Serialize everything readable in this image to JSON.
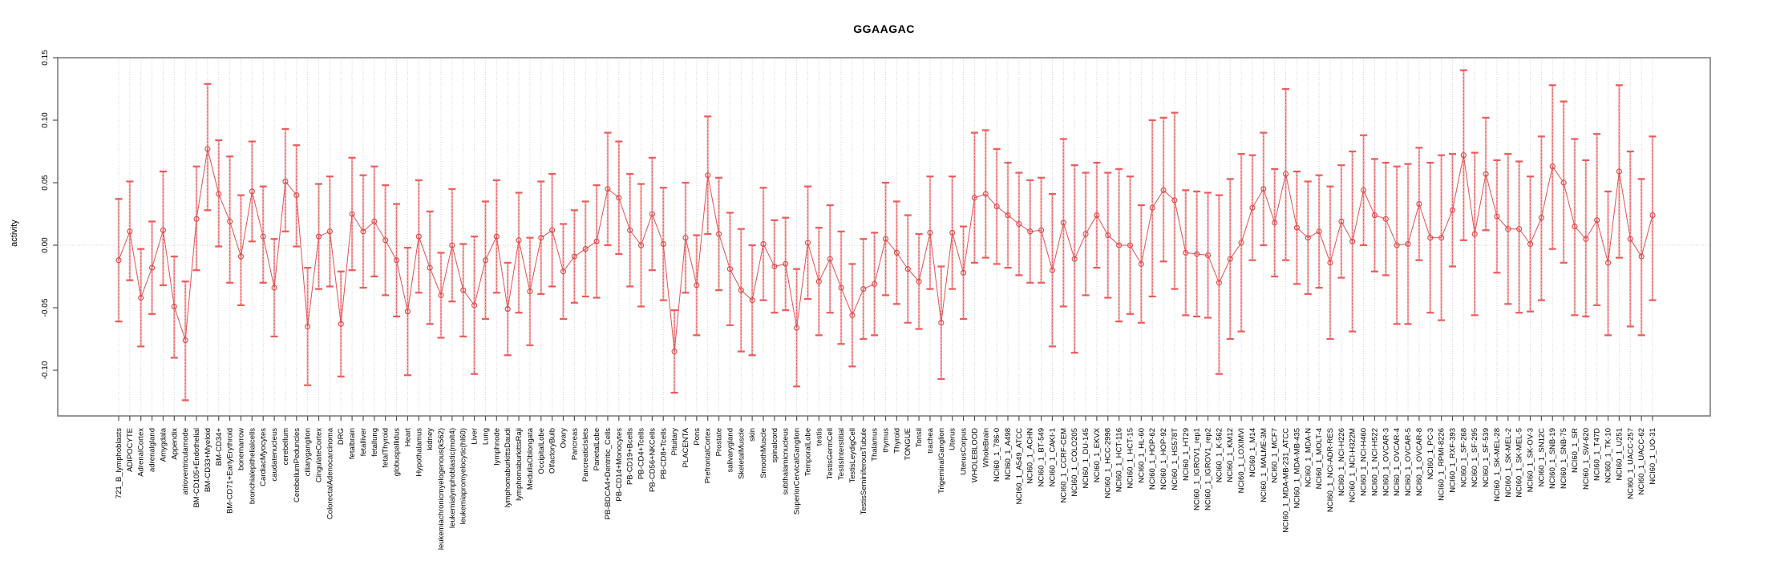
{
  "page": {
    "background": "#ffffff"
  },
  "chart_data": {
    "type": "line",
    "subtype": "means-with-error-bars",
    "title": "GGAAGAC",
    "ylabel": "activity",
    "xlabel": "",
    "legend": "none",
    "grid": "dotted vertical line per category, dotted horizontal line at 0",
    "ylim": [
      -0.137,
      0.15
    ],
    "yticks": [
      -0.1,
      -0.05,
      0.0,
      0.05,
      0.1,
      0.15
    ],
    "ytick_labels": [
      "-0.10",
      "-0.05",
      "0.00",
      "0.05",
      "0.10",
      "0.15"
    ],
    "marker": "open-circle",
    "error_bars": true,
    "colors": {
      "series": "#e25151",
      "marker": "#dd4444",
      "error_line": "#ef7070",
      "error_cap": "#ee5a5a",
      "grid": "#cfcfcf",
      "box": "#7f7f7f",
      "tick": "#555555",
      "text": "#000000"
    },
    "categories": [
      "721_B_lymphoblasts",
      "ADIPOCYTE",
      "AdrenalCortex",
      "adrenalgland",
      "Amygdala",
      "Appendix",
      "atrioventricularnode",
      "BM-CD105+Endothelial",
      "BM-CD33+Myeloid",
      "BM-CD34+",
      "BM-CD71+EarlyErythroid",
      "bonemarrow",
      "bronchialepithelialcells",
      "CardiacMyocytes",
      "caudatenucleus",
      "cerebellum",
      "CerebellumPeduncles",
      "ciliaryganglion",
      "CingulateCortex",
      "ColorectalAdenocarcinoma",
      "DRG",
      "fetalbrain",
      "fetalliver",
      "fetallung",
      "fetalThyroid",
      "globuspallidus",
      "Heart",
      "Hypothalamus",
      "kidney",
      "leukemiachronicmyelogenous(k562)",
      "leukemialymphoblastic(molt4)",
      "leukemiapromyelocytic(hl60)",
      "Liver",
      "Lung",
      "lymphnode",
      "lymphomaburkittsDaudi",
      "lymphomaburkittsRaji",
      "MedullaOblongata",
      "OccipitalLobe",
      "OlfactoryBulb",
      "Ovary",
      "Pancreas",
      "PancreaticIslets",
      "ParietalLobe",
      "PB-BDCA4+Dentritic_Cells",
      "PB-CD14+Monocytes",
      "PB-CD19+Bcells",
      "PB-CD4+Tcells",
      "PB-CD56+NKCells",
      "PB-CD8+Tcells",
      "Pituitary",
      "PLACENTA",
      "Pons",
      "PrefrontalCortex",
      "Prostate",
      "salivarygland",
      "SkeletalMuscle",
      "skin",
      "SmoothMuscle",
      "spinalcord",
      "subthalamicnucleus",
      "SuperiorCervicalGanglion",
      "TemporalLobe",
      "testis",
      "TestisGermCell",
      "TestisInterstitial",
      "TestisLeydigCell",
      "TestisSeminiferousTubule",
      "Thalamus",
      "thymus",
      "Thyroid",
      "TONGUE",
      "Tonsil",
      "trachea",
      "TrigeminalGanglion",
      "Uterus",
      "UterusCorpus",
      "WHOLEBLOOD",
      "WholeBrain",
      "NCI60_1_786-0",
      "NCI60_1_A498",
      "NCI60_1_A549_ATCC",
      "NCI60_1_ACHN",
      "NCI60_1_BT-549",
      "NCI60_1_CAKI-1",
      "NCI60_1_CCRF-CEM",
      "NCI60_1_COLO205",
      "NCI60_1_DU-145",
      "NCI60_1_EKVX",
      "NCI60_1_HCC-2998",
      "NCI60_1_HCT-116",
      "NCI60_1_HCT-15",
      "NCI60_1_HL-60",
      "NCI60_1_HOP-62",
      "NCI60_1_HOP-92",
      "NCI60_1_HS578T",
      "NCI60_1_HT29",
      "NCI60_1_IGROV1_rep1",
      "NCI60_1_IGROV1_rep2",
      "NCI60_1_K-562",
      "NCI60_1_KM12",
      "NCI60_1_LOXIMVI",
      "NCI60_1_M14",
      "NCI60_1_MALME-3M",
      "NCI60_1_MCF7",
      "NCI60_1_MDA-MB-231_ATCC",
      "NCI60_1_MDA-MB-435",
      "NCI60_1_MDA-N",
      "NCI60_1_MOLT-4",
      "NCI60_1_NCI-ADR-RES",
      "NCI60_1_NCI-H226",
      "NCI60_1_NCI-H322M",
      "NCI60_1_NCI-H460",
      "NCI60_1_NCI-H522",
      "NCI60_1_OVCAR-3",
      "NCI60_1_OVCAR-4",
      "NCI60_1_OVCAR-5",
      "NCI60_1_OVCAR-8",
      "NCI60_1_PC-3",
      "NCI60_1_RPMI-8226",
      "NCI60_1_RXF-393",
      "NCI60_1_SF-268",
      "NCI60_1_SF-295",
      "NCI60_1_SF-539",
      "NCI60_1_SK-MEL-28",
      "NCI60_1_SK-MEL-2",
      "NCI60_1_SK-MEL-5",
      "NCI60_1_SK-OV-3",
      "NCI60_1_SN12C",
      "NCI60_1_SNB-19",
      "NCI60_1_SNB-75",
      "NCI60_1_SR",
      "NCI60_1_SW-620",
      "NCI60_1_T47D",
      "NCI60_1_TK-10",
      "NCI60_1_U251",
      "NCI60_1_UACC-257",
      "NCI60_1_UACC-62",
      "NCI60_1_UO-31"
    ],
    "values": [
      -0.012,
      0.011,
      -0.042,
      -0.018,
      0.012,
      -0.049,
      -0.076,
      0.021,
      0.077,
      0.041,
      0.019,
      -0.009,
      0.043,
      0.007,
      -0.034,
      0.051,
      0.04,
      -0.065,
      0.007,
      0.011,
      -0.063,
      0.025,
      0.011,
      0.019,
      0.004,
      -0.012,
      -0.053,
      0.007,
      -0.018,
      -0.04,
      0.0,
      -0.036,
      -0.048,
      -0.012,
      0.007,
      -0.051,
      0.004,
      -0.037,
      0.006,
      0.012,
      -0.021,
      -0.009,
      -0.003,
      0.003,
      0.045,
      0.038,
      0.012,
      0.0,
      0.025,
      0.001,
      -0.085,
      0.006,
      -0.032,
      0.056,
      0.009,
      -0.019,
      -0.036,
      -0.044,
      0.001,
      -0.017,
      -0.015,
      -0.066,
      0.002,
      -0.029,
      -0.011,
      -0.034,
      -0.056,
      -0.035,
      -0.031,
      0.005,
      -0.006,
      -0.019,
      -0.029,
      0.01,
      -0.062,
      0.01,
      -0.022,
      0.038,
      0.041,
      0.031,
      0.024,
      0.017,
      0.011,
      0.012,
      -0.02,
      0.018,
      -0.011,
      0.009,
      0.024,
      0.008,
      0.0,
      0.0,
      -0.015,
      0.03,
      0.044,
      0.036,
      -0.006,
      -0.007,
      -0.008,
      -0.03,
      -0.011,
      0.002,
      0.03,
      0.045,
      0.018,
      0.057,
      0.014,
      0.006,
      0.011,
      -0.014,
      0.019,
      0.003,
      0.044,
      0.024,
      0.021,
      0.0,
      0.001,
      0.033,
      0.006,
      0.006,
      0.028,
      0.072,
      0.009,
      0.057,
      0.023,
      0.013,
      0.013,
      0.001,
      0.022,
      0.063,
      0.05,
      0.015,
      0.005,
      0.02,
      -0.014,
      0.059,
      0.005,
      -0.009,
      0.024
    ],
    "err_lo": [
      -0.061,
      -0.028,
      -0.081,
      -0.055,
      -0.032,
      -0.09,
      -0.124,
      -0.02,
      0.028,
      -0.001,
      -0.03,
      -0.048,
      0.003,
      -0.03,
      -0.073,
      0.011,
      -0.001,
      -0.112,
      -0.035,
      -0.033,
      -0.105,
      -0.02,
      -0.034,
      -0.025,
      -0.04,
      -0.057,
      -0.104,
      -0.038,
      -0.063,
      -0.074,
      -0.045,
      -0.073,
      -0.103,
      -0.059,
      -0.038,
      -0.088,
      -0.054,
      -0.08,
      -0.039,
      -0.033,
      -0.059,
      -0.046,
      -0.041,
      -0.042,
      0.0,
      -0.007,
      -0.033,
      -0.049,
      -0.02,
      -0.044,
      -0.118,
      -0.038,
      -0.072,
      0.009,
      -0.036,
      -0.064,
      -0.085,
      -0.088,
      -0.044,
      -0.054,
      -0.052,
      -0.113,
      -0.043,
      -0.072,
      -0.054,
      -0.079,
      -0.097,
      -0.075,
      -0.072,
      -0.04,
      -0.047,
      -0.062,
      -0.067,
      -0.035,
      -0.107,
      -0.035,
      -0.059,
      -0.014,
      -0.01,
      -0.015,
      -0.018,
      -0.024,
      -0.03,
      -0.03,
      -0.081,
      -0.049,
      -0.086,
      -0.04,
      -0.018,
      -0.042,
      -0.061,
      -0.055,
      -0.062,
      -0.041,
      -0.013,
      -0.035,
      -0.056,
      -0.057,
      -0.058,
      -0.103,
      -0.075,
      -0.069,
      -0.012,
      0.0,
      -0.025,
      -0.012,
      -0.031,
      -0.039,
      -0.034,
      -0.075,
      -0.026,
      -0.069,
      0.0,
      -0.021,
      -0.024,
      -0.063,
      -0.063,
      -0.012,
      -0.054,
      -0.06,
      -0.017,
      0.004,
      -0.056,
      0.012,
      -0.022,
      -0.047,
      -0.054,
      -0.053,
      -0.044,
      -0.003,
      -0.014,
      -0.056,
      -0.057,
      -0.048,
      -0.072,
      -0.01,
      -0.065,
      -0.072,
      -0.044
    ],
    "err_hi": [
      0.037,
      0.051,
      -0.003,
      0.019,
      0.059,
      -0.009,
      -0.029,
      0.063,
      0.129,
      0.084,
      0.071,
      0.04,
      0.083,
      0.047,
      0.005,
      0.093,
      0.08,
      -0.018,
      0.049,
      0.055,
      -0.021,
      0.07,
      0.056,
      0.063,
      0.048,
      0.033,
      -0.002,
      0.052,
      0.027,
      -0.006,
      0.045,
      0.001,
      0.007,
      0.035,
      0.052,
      -0.014,
      0.042,
      0.006,
      0.051,
      0.057,
      0.017,
      0.028,
      0.035,
      0.048,
      0.09,
      0.083,
      0.057,
      0.049,
      0.07,
      0.046,
      -0.052,
      0.05,
      0.008,
      0.103,
      0.054,
      0.026,
      0.013,
      0.0,
      0.046,
      0.02,
      0.022,
      -0.019,
      0.047,
      0.014,
      0.032,
      0.011,
      -0.015,
      0.005,
      0.01,
      0.05,
      0.035,
      0.024,
      0.009,
      0.055,
      -0.017,
      0.055,
      0.015,
      0.09,
      0.092,
      0.077,
      0.066,
      0.058,
      0.052,
      0.054,
      0.041,
      0.085,
      0.064,
      0.058,
      0.066,
      0.058,
      0.061,
      0.055,
      0.032,
      0.1,
      0.102,
      0.106,
      0.044,
      0.043,
      0.042,
      0.04,
      0.053,
      0.073,
      0.072,
      0.09,
      0.061,
      0.125,
      0.059,
      0.051,
      0.056,
      0.047,
      0.064,
      0.075,
      0.088,
      0.069,
      0.066,
      0.063,
      0.065,
      0.078,
      0.066,
      0.072,
      0.073,
      0.14,
      0.074,
      0.102,
      0.068,
      0.073,
      0.067,
      0.055,
      0.087,
      0.128,
      0.115,
      0.085,
      0.068,
      0.089,
      0.043,
      0.128,
      0.075,
      0.053,
      0.087
    ]
  }
}
